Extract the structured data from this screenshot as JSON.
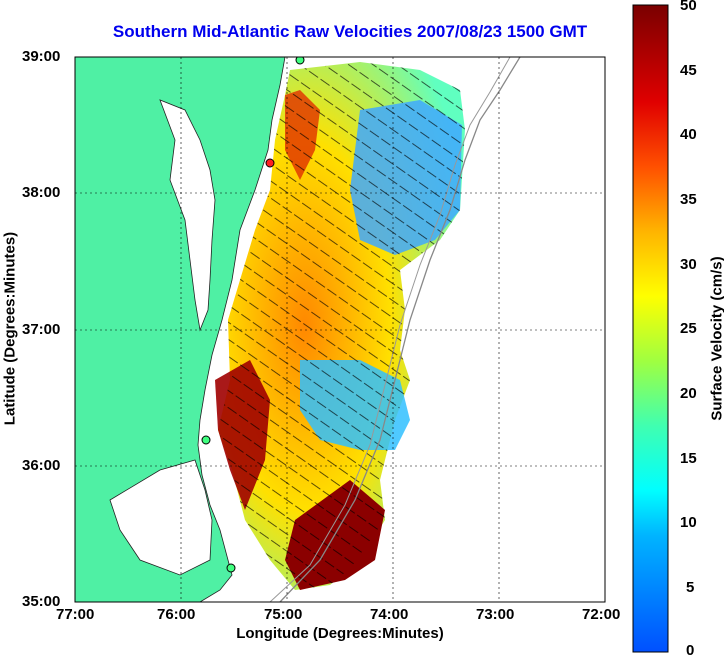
{
  "title": "Southern Mid-Atlantic Raw Velocities 2007/08/23 1500 GMT",
  "title_color": "#0000ee",
  "xlabel": "Longitude (Degrees:Minutes)",
  "ylabel": "Latitude (Degrees:Minutes)",
  "colorbar_label": "Surface Velocity (cm/s)",
  "x_ticks": [
    "77:00",
    "76:00",
    "75:00",
    "74:00",
    "73:00",
    "72:00"
  ],
  "y_ticks": [
    "39:00",
    "38:00",
    "37:00",
    "36:00",
    "35:00"
  ],
  "colorbar_ticks": [
    "50",
    "45",
    "40",
    "35",
    "30",
    "25",
    "20",
    "15",
    "10",
    "5",
    "0"
  ],
  "colors": {
    "land": "#4ff0a4",
    "min": "#0050ff",
    "max": "#7a0000"
  },
  "map_extent": {
    "lon": [
      -77,
      -72
    ],
    "lat": [
      35,
      39
    ]
  },
  "colorbar_range": [
    0,
    50
  ]
}
